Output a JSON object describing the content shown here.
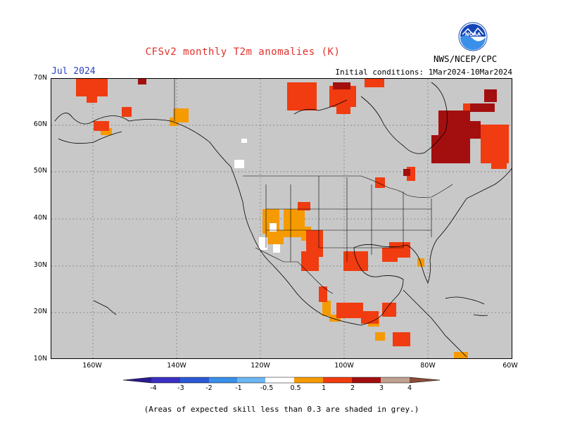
{
  "header": {
    "title": "CFSv2 monthly T2m anomalies (K)",
    "month": "Jul 2024",
    "initial_conditions": "Initial conditions: 1Mar2024-10Mar2024",
    "agency": "NWS/NCEP/CPC",
    "logo_text": "NOAA"
  },
  "map": {
    "lat_labels": [
      "70N",
      "60N",
      "50N",
      "40N",
      "30N",
      "20N",
      "10N"
    ],
    "lon_labels": [
      "160W",
      "140W",
      "120W",
      "100W",
      "80W",
      "60W"
    ],
    "background_color": "#c8c8c8"
  },
  "colorbar": {
    "labels": [
      "-4",
      "-3",
      "-2",
      "-1",
      "-0.5",
      "0.5",
      "1",
      "2",
      "3",
      "4"
    ],
    "colors": [
      "#2a1b8f",
      "#3a2fc2",
      "#2b59d6",
      "#3a8fe8",
      "#6cb6f2",
      "#ffffff",
      "#f59a00",
      "#f03c10",
      "#a30f0f",
      "#c0a090",
      "#8a4c3a"
    ]
  },
  "footnote": "(Areas of expected skill less than 0.3 are shaded in grey.)"
}
